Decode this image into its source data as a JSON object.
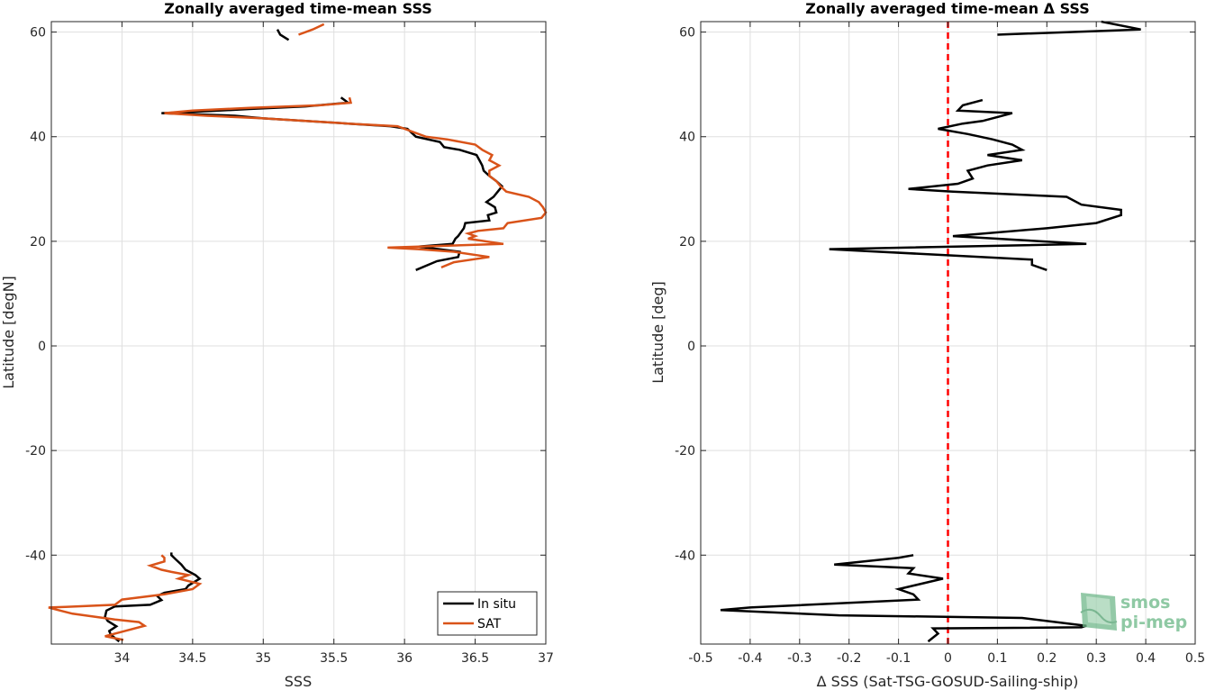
{
  "chart_data": [
    {
      "type": "line",
      "title": "Zonally averaged time-mean SSS",
      "xlabel": "SSS",
      "ylabel": "Latitude [degN]",
      "xlim": [
        33.5,
        37
      ],
      "ylim": [
        -57,
        62
      ],
      "xticks": [
        34,
        34.5,
        35,
        35.5,
        36,
        36.5,
        37
      ],
      "xtick_labels": [
        "34",
        "34.5",
        "35",
        "35.5",
        "36",
        "36.5",
        "37"
      ],
      "yticks": [
        -40,
        -20,
        0,
        20,
        40,
        60
      ],
      "ytick_labels": [
        "-40",
        "-20",
        "0",
        "20",
        "40",
        "60"
      ],
      "grid": true,
      "legend": "bottom-right",
      "series": [
        {
          "name": "In situ",
          "color": "#000000",
          "segments": [
            [
              [
                33.98,
                -56.5
              ],
              [
                33.92,
                -55.2
              ],
              [
                33.91,
                -54.5
              ],
              [
                33.96,
                -53.6
              ],
              [
                33.9,
                -52.6
              ],
              [
                33.88,
                -51.8
              ],
              [
                33.89,
                -50.6
              ],
              [
                33.95,
                -49.8
              ],
              [
                34.2,
                -49.5
              ],
              [
                34.28,
                -48.6
              ],
              [
                34.25,
                -47.8
              ],
              [
                34.3,
                -47.2
              ],
              [
                34.45,
                -46.5
              ],
              [
                34.47,
                -45.8
              ],
              [
                34.55,
                -44.5
              ],
              [
                34.52,
                -43.8
              ],
              [
                34.45,
                -42.8
              ],
              [
                34.42,
                -41.8
              ],
              [
                34.38,
                -40.8
              ],
              [
                34.35,
                -40.0
              ],
              [
                34.35,
                -39.5
              ]
            ],
            [
              [
                36.08,
                14.5
              ],
              [
                36.23,
                16.2
              ],
              [
                36.38,
                17.0
              ],
              [
                36.39,
                18.0
              ],
              [
                36.1,
                19.0
              ],
              [
                36.34,
                19.5
              ],
              [
                36.36,
                20.5
              ],
              [
                36.38,
                21.0
              ],
              [
                36.42,
                22.5
              ],
              [
                36.43,
                23.5
              ],
              [
                36.6,
                24.0
              ],
              [
                36.59,
                25.0
              ],
              [
                36.65,
                25.5
              ],
              [
                36.64,
                26.5
              ],
              [
                36.58,
                27.5
              ],
              [
                36.63,
                28.5
              ],
              [
                36.66,
                29.5
              ],
              [
                36.69,
                30.5
              ],
              [
                36.65,
                31.5
              ],
              [
                36.6,
                32.5
              ],
              [
                36.56,
                33.5
              ],
              [
                36.55,
                34.5
              ],
              [
                36.53,
                35.5
              ],
              [
                36.51,
                36.5
              ],
              [
                36.39,
                37.5
              ],
              [
                36.28,
                38.0
              ],
              [
                36.25,
                39.0
              ],
              [
                36.08,
                40.0
              ],
              [
                36.02,
                41.5
              ],
              [
                35.9,
                42.0
              ],
              [
                35.6,
                42.5
              ],
              [
                35.0,
                43.5
              ],
              [
                34.8,
                44.0
              ],
              [
                34.28,
                44.5
              ],
              [
                34.55,
                44.8
              ],
              [
                34.9,
                45.3
              ],
              [
                35.3,
                45.8
              ],
              [
                35.6,
                46.5
              ],
              [
                35.55,
                47.5
              ]
            ],
            [
              [
                35.1,
                60.5
              ],
              [
                35.12,
                59.5
              ],
              [
                35.18,
                58.5
              ]
            ]
          ]
        },
        {
          "name": "SAT",
          "color": "#d95319",
          "segments": [
            [
              [
                34.01,
                -56.2
              ],
              [
                33.88,
                -55.5
              ],
              [
                33.98,
                -54.8
              ],
              [
                34.16,
                -53.5
              ],
              [
                34.12,
                -52.8
              ],
              [
                33.95,
                -52.3
              ],
              [
                33.65,
                -51.2
              ],
              [
                33.55,
                -50.5
              ],
              [
                33.48,
                -50.0
              ],
              [
                33.6,
                -49.9
              ],
              [
                33.95,
                -49.5
              ],
              [
                34.0,
                -48.5
              ],
              [
                34.3,
                -47.5
              ],
              [
                34.5,
                -46.5
              ],
              [
                34.55,
                -45.5
              ],
              [
                34.4,
                -44.5
              ],
              [
                34.47,
                -43.8
              ],
              [
                34.35,
                -43.2
              ],
              [
                34.28,
                -42.8
              ],
              [
                34.2,
                -42.0
              ],
              [
                34.3,
                -41.2
              ],
              [
                34.3,
                -40.5
              ],
              [
                34.28,
                -40.0
              ]
            ],
            [
              [
                36.26,
                15.0
              ],
              [
                36.35,
                16.0
              ],
              [
                36.6,
                17.0
              ],
              [
                36.35,
                18.0
              ],
              [
                36.1,
                18.5
              ],
              [
                35.88,
                18.8
              ],
              [
                36.7,
                19.5
              ],
              [
                36.45,
                20.5
              ],
              [
                36.5,
                21.0
              ],
              [
                36.45,
                21.5
              ],
              [
                36.52,
                22.0
              ],
              [
                36.7,
                22.5
              ],
              [
                36.73,
                23.5
              ],
              [
                36.97,
                24.5
              ],
              [
                37.0,
                25.5
              ],
              [
                36.98,
                26.5
              ],
              [
                36.95,
                27.5
              ],
              [
                36.88,
                28.5
              ],
              [
                36.72,
                29.5
              ],
              [
                36.68,
                30.5
              ],
              [
                36.65,
                31.5
              ],
              [
                36.6,
                32.5
              ],
              [
                36.6,
                33.5
              ],
              [
                36.67,
                34.5
              ],
              [
                36.6,
                35.5
              ],
              [
                36.62,
                36.5
              ],
              [
                36.55,
                37.5
              ],
              [
                36.5,
                38.5
              ],
              [
                36.3,
                39.5
              ],
              [
                36.15,
                40.0
              ],
              [
                36.0,
                41.5
              ],
              [
                35.95,
                42.0
              ],
              [
                35.6,
                42.5
              ],
              [
                35.0,
                43.5
              ],
              [
                34.6,
                44.0
              ],
              [
                34.3,
                44.5
              ],
              [
                34.5,
                45.0
              ],
              [
                34.9,
                45.5
              ],
              [
                35.4,
                46.0
              ],
              [
                35.62,
                46.5
              ],
              [
                35.61,
                47.5
              ]
            ],
            [
              [
                35.25,
                59.5
              ],
              [
                35.35,
                60.5
              ],
              [
                35.43,
                61.5
              ]
            ]
          ]
        }
      ]
    },
    {
      "type": "line",
      "title": "Zonally averaged time-mean Δ SSS",
      "xlabel": "Δ SSS (Sat-TSG-GOSUD-Sailing-ship)",
      "ylabel": "Latitude [deg]",
      "xlim": [
        -0.5,
        0.5
      ],
      "ylim": [
        -57,
        62
      ],
      "xticks": [
        -0.5,
        -0.4,
        -0.3,
        -0.2,
        -0.1,
        0,
        0.1,
        0.2,
        0.3,
        0.4,
        0.5
      ],
      "xtick_labels": [
        "-0.5",
        "-0.4",
        "-0.3",
        "-0.2",
        "-0.1",
        "0",
        "0.1",
        "0.2",
        "0.3",
        "0.4",
        "0.5"
      ],
      "yticks": [
        -40,
        -20,
        0,
        20,
        40,
        60
      ],
      "ytick_labels": [
        "-40",
        "-20",
        "0",
        "20",
        "40",
        "60"
      ],
      "grid": true,
      "reference_line": {
        "x": 0,
        "color": "#ff0000",
        "style": "dashed"
      },
      "series": [
        {
          "color": "#000000",
          "segments": [
            [
              [
                -0.04,
                -56.5
              ],
              [
                -0.02,
                -55.0
              ],
              [
                -0.03,
                -54.0
              ],
              [
                0.27,
                -53.8
              ],
              [
                0.28,
                -53.5
              ],
              [
                0.15,
                -52.0
              ],
              [
                -0.22,
                -51.5
              ],
              [
                -0.46,
                -50.5
              ],
              [
                -0.4,
                -50.0
              ],
              [
                -0.06,
                -48.5
              ],
              [
                -0.07,
                -47.5
              ],
              [
                -0.1,
                -46.5
              ],
              [
                -0.01,
                -44.5
              ],
              [
                -0.08,
                -43.5
              ],
              [
                -0.07,
                -42.5
              ],
              [
                -0.23,
                -41.8
              ],
              [
                -0.1,
                -40.5
              ],
              [
                -0.07,
                -40.0
              ]
            ],
            [
              [
                0.2,
                14.5
              ],
              [
                0.17,
                15.5
              ],
              [
                0.17,
                16.5
              ],
              [
                -0.24,
                18.5
              ],
              [
                0.28,
                19.5
              ],
              [
                0.01,
                21.0
              ],
              [
                0.2,
                22.5
              ],
              [
                0.3,
                23.5
              ],
              [
                0.35,
                25.0
              ],
              [
                0.35,
                26.0
              ],
              [
                0.27,
                27.0
              ],
              [
                0.24,
                28.5
              ],
              [
                0.01,
                29.5
              ],
              [
                -0.08,
                30.0
              ],
              [
                0.02,
                31.0
              ],
              [
                0.05,
                32.0
              ],
              [
                0.04,
                33.5
              ],
              [
                0.08,
                34.5
              ],
              [
                0.15,
                35.5
              ],
              [
                0.08,
                36.5
              ],
              [
                0.15,
                37.5
              ],
              [
                0.13,
                38.5
              ],
              [
                0.09,
                39.5
              ],
              [
                0.04,
                40.5
              ],
              [
                -0.02,
                41.5
              ],
              [
                0.03,
                42.5
              ],
              [
                0.07,
                43.0
              ],
              [
                0.13,
                44.5
              ],
              [
                0.02,
                45.0
              ],
              [
                0.03,
                46.0
              ],
              [
                0.07,
                47.0
              ]
            ],
            [
              [
                0.1,
                59.5
              ],
              [
                0.39,
                60.5
              ],
              [
                0.31,
                62.0
              ]
            ]
          ]
        }
      ]
    }
  ],
  "legend": {
    "items": [
      "In situ",
      "SAT"
    ]
  },
  "logo": {
    "line1": "smos",
    "line2": "pi-mep"
  }
}
